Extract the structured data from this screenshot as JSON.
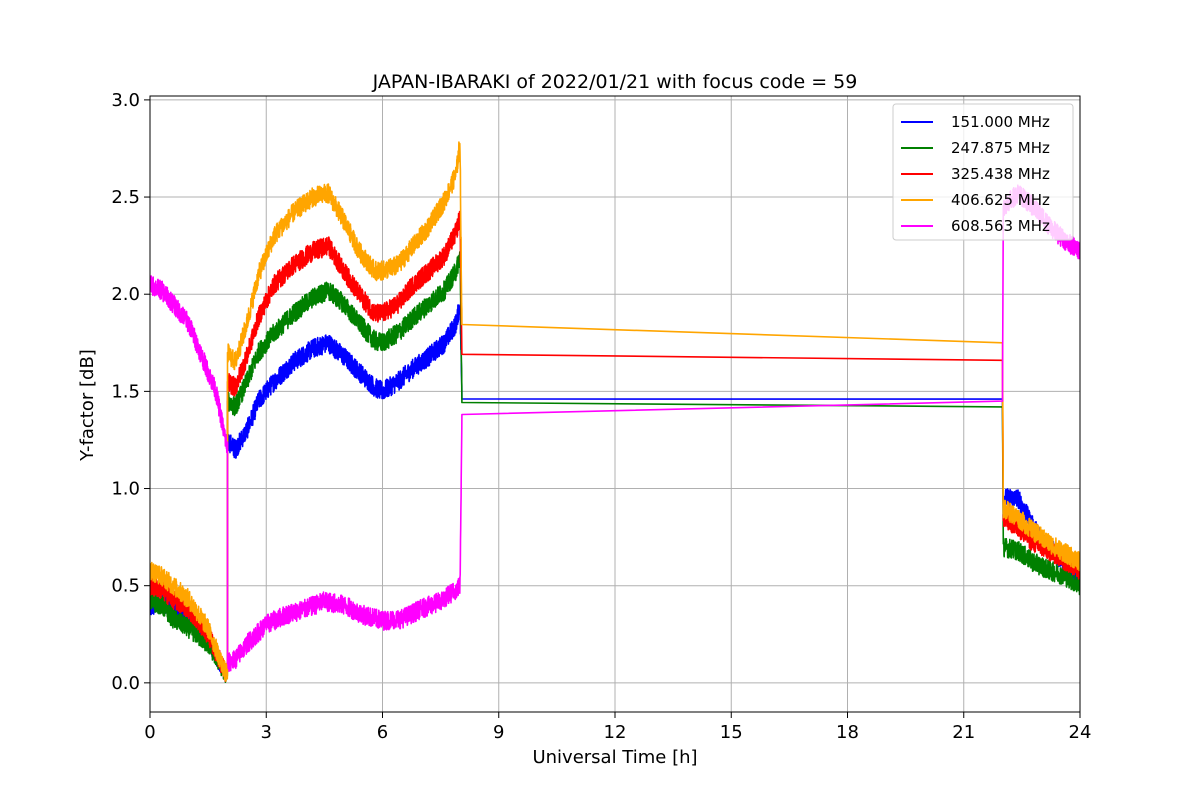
{
  "chart_data": {
    "type": "line",
    "title": "JAPAN-IBARAKI of 2022/01/21 with focus code = 59",
    "xlabel": "Universal Time [h]",
    "ylabel": "Y-factor [dB]",
    "xlim": [
      0,
      24
    ],
    "ylim": [
      -0.15,
      3.02
    ],
    "xticks": [
      0,
      3,
      6,
      9,
      12,
      15,
      18,
      21,
      24
    ],
    "xtick_labels": [
      "0",
      "3",
      "6",
      "9",
      "12",
      "15",
      "18",
      "21",
      "24"
    ],
    "yticks": [
      0.0,
      0.5,
      1.0,
      1.5,
      2.0,
      2.5,
      3.0
    ],
    "ytick_labels": [
      "0.0",
      "0.5",
      "1.0",
      "1.5",
      "2.0",
      "2.5",
      "3.0"
    ],
    "grid": true,
    "legend_position": "top-right",
    "series": [
      {
        "name": "151.000 MHz",
        "color": "#0000ff",
        "x": [
          0.0,
          0.3,
          0.6,
          1.0,
          1.5,
          1.95,
          2.0,
          2.0,
          2.2,
          2.5,
          2.8,
          3.2,
          3.7,
          4.2,
          4.6,
          5.0,
          5.4,
          5.8,
          6.0,
          6.4,
          6.8,
          7.2,
          7.6,
          7.9,
          8.0,
          8.05,
          22.0,
          22.02,
          22.4,
          22.8,
          23.2,
          23.6,
          24.0
        ],
        "y": [
          0.38,
          0.42,
          0.38,
          0.33,
          0.22,
          0.05,
          0.05,
          1.25,
          1.2,
          1.3,
          1.45,
          1.55,
          1.65,
          1.72,
          1.75,
          1.68,
          1.6,
          1.52,
          1.5,
          1.55,
          1.62,
          1.68,
          1.75,
          1.85,
          1.95,
          1.48,
          1.46,
          0.95,
          0.95,
          0.8,
          0.7,
          0.62,
          0.55
        ],
        "noise": 0.05
      },
      {
        "name": "247.875 MHz",
        "color": "#008000",
        "x": [
          0.0,
          0.3,
          0.6,
          1.0,
          1.5,
          1.95,
          2.0,
          2.0,
          2.2,
          2.5,
          2.8,
          3.2,
          3.7,
          4.2,
          4.6,
          5.0,
          5.4,
          5.8,
          6.0,
          6.4,
          6.8,
          7.2,
          7.6,
          7.9,
          8.0,
          8.05,
          22.0,
          22.02,
          22.4,
          22.8,
          23.2,
          23.6,
          24.0
        ],
        "y": [
          0.42,
          0.4,
          0.33,
          0.28,
          0.2,
          0.05,
          0.05,
          1.45,
          1.42,
          1.55,
          1.7,
          1.8,
          1.9,
          1.98,
          2.02,
          1.95,
          1.85,
          1.76,
          1.75,
          1.8,
          1.88,
          1.95,
          2.02,
          2.12,
          2.2,
          1.47,
          1.42,
          0.7,
          0.68,
          0.62,
          0.58,
          0.55,
          0.5
        ],
        "noise": 0.05
      },
      {
        "name": "325.438 MHz",
        "color": "#ff0000",
        "x": [
          0.0,
          0.3,
          0.6,
          1.0,
          1.5,
          1.95,
          2.0,
          2.0,
          2.2,
          2.5,
          2.8,
          3.2,
          3.7,
          4.2,
          4.6,
          5.0,
          5.4,
          5.8,
          6.0,
          6.4,
          6.8,
          7.2,
          7.6,
          7.9,
          8.0,
          8.05,
          22.0,
          22.02,
          22.4,
          22.8,
          23.2,
          23.6,
          24.0
        ],
        "y": [
          0.5,
          0.48,
          0.43,
          0.38,
          0.25,
          0.05,
          0.05,
          1.55,
          1.52,
          1.68,
          1.88,
          2.05,
          2.15,
          2.22,
          2.25,
          2.12,
          2.0,
          1.9,
          1.9,
          1.95,
          2.05,
          2.12,
          2.2,
          2.32,
          2.4,
          1.7,
          1.66,
          0.85,
          0.8,
          0.72,
          0.68,
          0.63,
          0.58
        ],
        "noise": 0.05
      },
      {
        "name": "406.625 MHz",
        "color": "#ffa500",
        "x": [
          0.0,
          0.3,
          0.6,
          1.0,
          1.5,
          1.95,
          2.0,
          2.0,
          2.2,
          2.5,
          2.8,
          3.2,
          3.7,
          4.2,
          4.6,
          5.0,
          5.4,
          5.8,
          6.0,
          6.4,
          6.8,
          7.2,
          7.6,
          7.9,
          8.0,
          8.05,
          22.0,
          22.02,
          22.4,
          22.8,
          23.2,
          23.6,
          24.0
        ],
        "y": [
          0.58,
          0.55,
          0.5,
          0.43,
          0.28,
          0.05,
          0.05,
          1.7,
          1.65,
          1.85,
          2.1,
          2.3,
          2.42,
          2.5,
          2.52,
          2.38,
          2.22,
          2.12,
          2.12,
          2.15,
          2.25,
          2.35,
          2.48,
          2.62,
          2.78,
          1.8,
          1.75,
          0.9,
          0.85,
          0.78,
          0.72,
          0.67,
          0.62
        ],
        "noise": 0.05
      },
      {
        "name": "608.563 MHz",
        "color": "#ff00ff",
        "x": [
          0.0,
          0.3,
          0.6,
          1.0,
          1.4,
          1.7,
          1.95,
          2.0,
          2.0,
          2.2,
          2.5,
          3.0,
          3.5,
          4.0,
          4.5,
          5.0,
          5.5,
          6.0,
          6.5,
          7.0,
          7.5,
          7.9,
          8.0,
          8.05,
          22.0,
          22.02,
          22.4,
          22.8,
          23.2,
          23.6,
          24.0
        ],
        "y": [
          2.05,
          2.02,
          1.95,
          1.85,
          1.65,
          1.5,
          1.25,
          1.2,
          0.1,
          0.12,
          0.2,
          0.3,
          0.35,
          0.38,
          0.42,
          0.4,
          0.35,
          0.32,
          0.33,
          0.38,
          0.42,
          0.48,
          0.5,
          1.41,
          1.45,
          2.45,
          2.52,
          2.45,
          2.35,
          2.28,
          2.22
        ],
        "noise": 0.05
      }
    ]
  }
}
